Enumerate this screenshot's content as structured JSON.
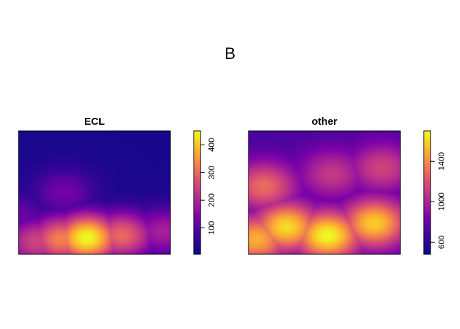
{
  "figure": {
    "title": "B"
  },
  "chart_data": [
    {
      "type": "heatmap",
      "title": "ECL",
      "xlabel": "",
      "ylabel": "",
      "colorbar": {
        "min": 5,
        "max": 450,
        "ticks": [
          100,
          200,
          300,
          400
        ],
        "palette": "plasma"
      },
      "hotspots": [
        {
          "x": 0.45,
          "y": 0.13,
          "value": 450
        },
        {
          "x": 0.28,
          "y": 0.12,
          "value": 330
        },
        {
          "x": 0.68,
          "y": 0.15,
          "value": 300
        },
        {
          "x": 0.12,
          "y": 0.1,
          "value": 250
        },
        {
          "x": 0.95,
          "y": 0.18,
          "value": 190
        },
        {
          "x": 0.3,
          "y": 0.5,
          "value": 130
        },
        {
          "x": 0.0,
          "y": 0.3,
          "value": 120
        }
      ],
      "background": 22,
      "grid": false
    },
    {
      "type": "heatmap",
      "title": "other",
      "xlabel": "",
      "ylabel": "",
      "colorbar": {
        "min": 480,
        "max": 1700,
        "ticks": [
          600,
          1000,
          1400
        ],
        "palette": "plasma"
      },
      "hotspots": [
        {
          "x": 0.52,
          "y": 0.15,
          "value": 1700
        },
        {
          "x": 0.25,
          "y": 0.22,
          "value": 1620
        },
        {
          "x": 0.05,
          "y": 0.12,
          "value": 1500
        },
        {
          "x": 0.83,
          "y": 0.25,
          "value": 1580
        },
        {
          "x": 0.1,
          "y": 0.55,
          "value": 1300
        },
        {
          "x": 0.55,
          "y": 0.65,
          "value": 1100
        },
        {
          "x": 0.88,
          "y": 0.7,
          "value": 1150
        }
      ],
      "background": 700,
      "grid": false
    }
  ],
  "colors": {
    "plasma_low": "#0d0887",
    "plasma_mid": "#cc4778",
    "plasma_high": "#f0f921"
  }
}
